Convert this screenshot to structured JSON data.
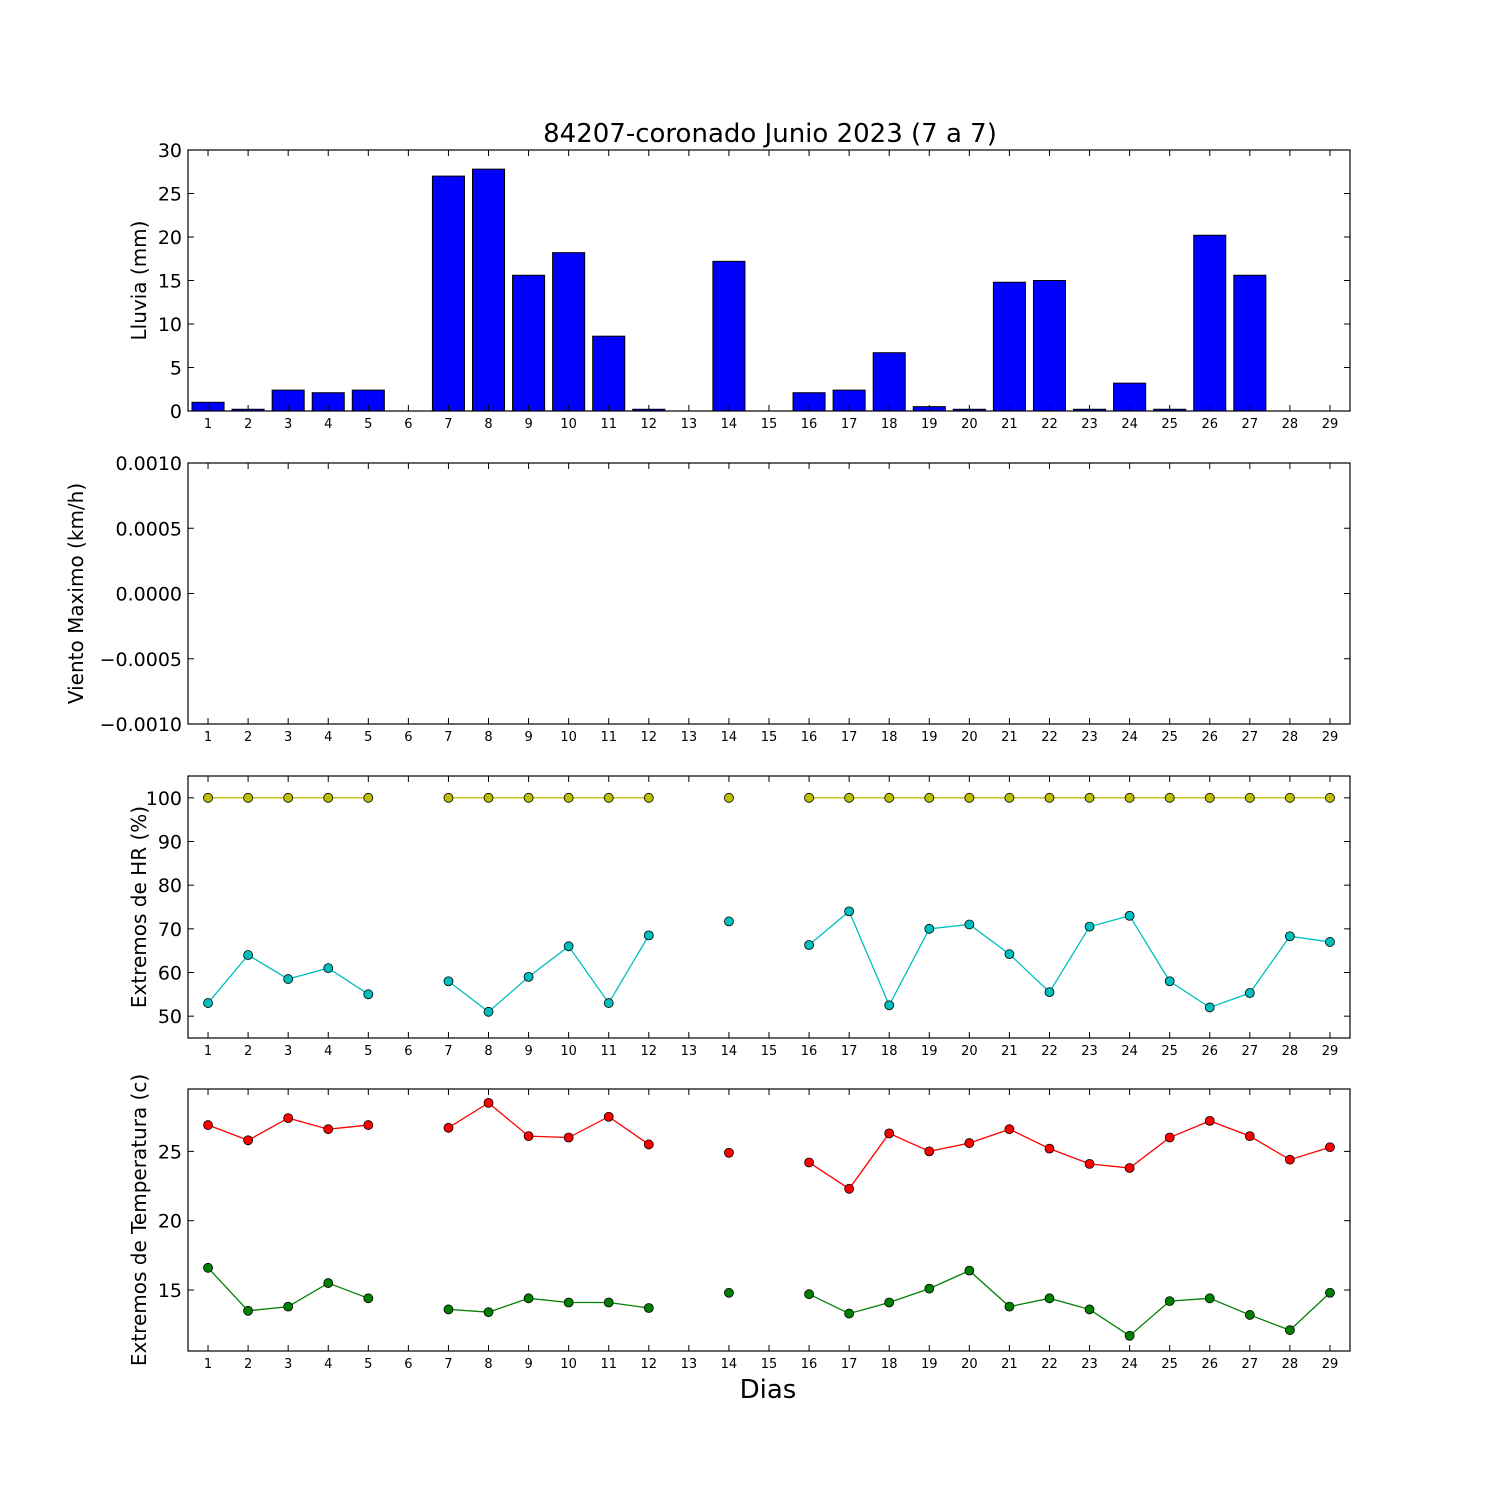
{
  "title": "84207-coronado Junio 2023  (7 a 7)",
  "xlabel": "Dias",
  "days": [
    1,
    2,
    3,
    4,
    5,
    6,
    7,
    8,
    9,
    10,
    11,
    12,
    13,
    14,
    15,
    16,
    17,
    18,
    19,
    20,
    21,
    22,
    23,
    24,
    25,
    26,
    27,
    28,
    29
  ],
  "chart_data": [
    {
      "type": "bar",
      "ylabel": "Lluvia (mm)",
      "ylim": [
        0,
        30
      ],
      "yticks": [
        0,
        5,
        10,
        15,
        20,
        25,
        30
      ],
      "ytick_labels": [
        "0",
        "5",
        "10",
        "15",
        "20",
        "25",
        "30"
      ],
      "x": [
        1,
        2,
        3,
        4,
        5,
        6,
        7,
        8,
        9,
        10,
        11,
        12,
        13,
        14,
        15,
        16,
        17,
        18,
        19,
        20,
        21,
        22,
        23,
        24,
        25,
        26,
        27,
        28,
        29
      ],
      "series": [
        {
          "color": "#0000ff",
          "values": [
            1.0,
            0.2,
            2.4,
            2.1,
            2.4,
            0,
            27.0,
            27.8,
            15.6,
            18.2,
            8.6,
            0.2,
            0,
            17.2,
            0,
            2.1,
            2.4,
            6.7,
            0.5,
            0.2,
            14.8,
            15.0,
            0.2,
            3.2,
            0.2,
            20.2,
            15.6,
            0,
            0
          ]
        }
      ]
    },
    {
      "type": "line",
      "ylabel": "Viento Maximo (km/h)",
      "ylim": [
        -0.001,
        0.001
      ],
      "yticks": [
        -0.001,
        -0.0005,
        0,
        0.0005,
        0.001
      ],
      "ytick_labels": [
        "−0.0010",
        "−0.0005",
        "0.0000",
        "0.0005",
        "0.0010"
      ],
      "x": [
        1,
        2,
        3,
        4,
        5,
        6,
        7,
        8,
        9,
        10,
        11,
        12,
        13,
        14,
        15,
        16,
        17,
        18,
        19,
        20,
        21,
        22,
        23,
        24,
        25,
        26,
        27,
        28,
        29
      ],
      "series": []
    },
    {
      "type": "line",
      "ylabel": "Extremos de HR (%)",
      "ylim": [
        45,
        105
      ],
      "yticks": [
        50,
        60,
        70,
        80,
        90,
        100
      ],
      "ytick_labels": [
        "50",
        "60",
        "70",
        "80",
        "90",
        "100"
      ],
      "x": [
        1,
        2,
        3,
        4,
        5,
        6,
        7,
        8,
        9,
        10,
        11,
        12,
        13,
        14,
        15,
        16,
        17,
        18,
        19,
        20,
        21,
        22,
        23,
        24,
        25,
        26,
        27,
        28,
        29
      ],
      "series": [
        {
          "color": "#bfbf00",
          "values": [
            100,
            100,
            100,
            100,
            100,
            null,
            100,
            100,
            100,
            100,
            100,
            100,
            null,
            100,
            null,
            100,
            100,
            100,
            100,
            100,
            100,
            100,
            100,
            100,
            100,
            100,
            100,
            100,
            100
          ]
        },
        {
          "color": "#00bfbf",
          "values": [
            53,
            64,
            58.5,
            61,
            55,
            null,
            58,
            51,
            59,
            66,
            53,
            68.5,
            null,
            71.7,
            null,
            66.3,
            74,
            52.5,
            70,
            71,
            64.2,
            55.5,
            70.5,
            73,
            58,
            52,
            55.3,
            68.3,
            67
          ]
        }
      ]
    },
    {
      "type": "line",
      "ylabel": "Extremos de Temperatura (c)",
      "ylim": [
        10.6,
        29.5
      ],
      "yticks": [
        15,
        20,
        25
      ],
      "ytick_labels": [
        "15",
        "20",
        "25"
      ],
      "x": [
        1,
        2,
        3,
        4,
        5,
        6,
        7,
        8,
        9,
        10,
        11,
        12,
        13,
        14,
        15,
        16,
        17,
        18,
        19,
        20,
        21,
        22,
        23,
        24,
        25,
        26,
        27,
        28,
        29
      ],
      "series": [
        {
          "color": "#ff0000",
          "values": [
            26.9,
            25.8,
            27.4,
            26.6,
            26.9,
            null,
            26.7,
            28.5,
            26.1,
            26.0,
            27.5,
            25.5,
            null,
            24.9,
            null,
            24.2,
            22.3,
            26.3,
            25.0,
            25.6,
            26.6,
            25.2,
            24.1,
            23.8,
            26.0,
            27.2,
            26.1,
            24.4,
            25.3
          ]
        },
        {
          "color": "#008000",
          "values": [
            16.6,
            13.5,
            13.8,
            15.5,
            14.4,
            null,
            13.6,
            13.4,
            14.4,
            14.1,
            14.1,
            13.7,
            null,
            14.8,
            null,
            14.7,
            13.3,
            14.1,
            15.1,
            16.4,
            13.8,
            14.4,
            13.6,
            11.7,
            14.2,
            14.4,
            13.2,
            12.1,
            14.8
          ]
        }
      ]
    }
  ]
}
